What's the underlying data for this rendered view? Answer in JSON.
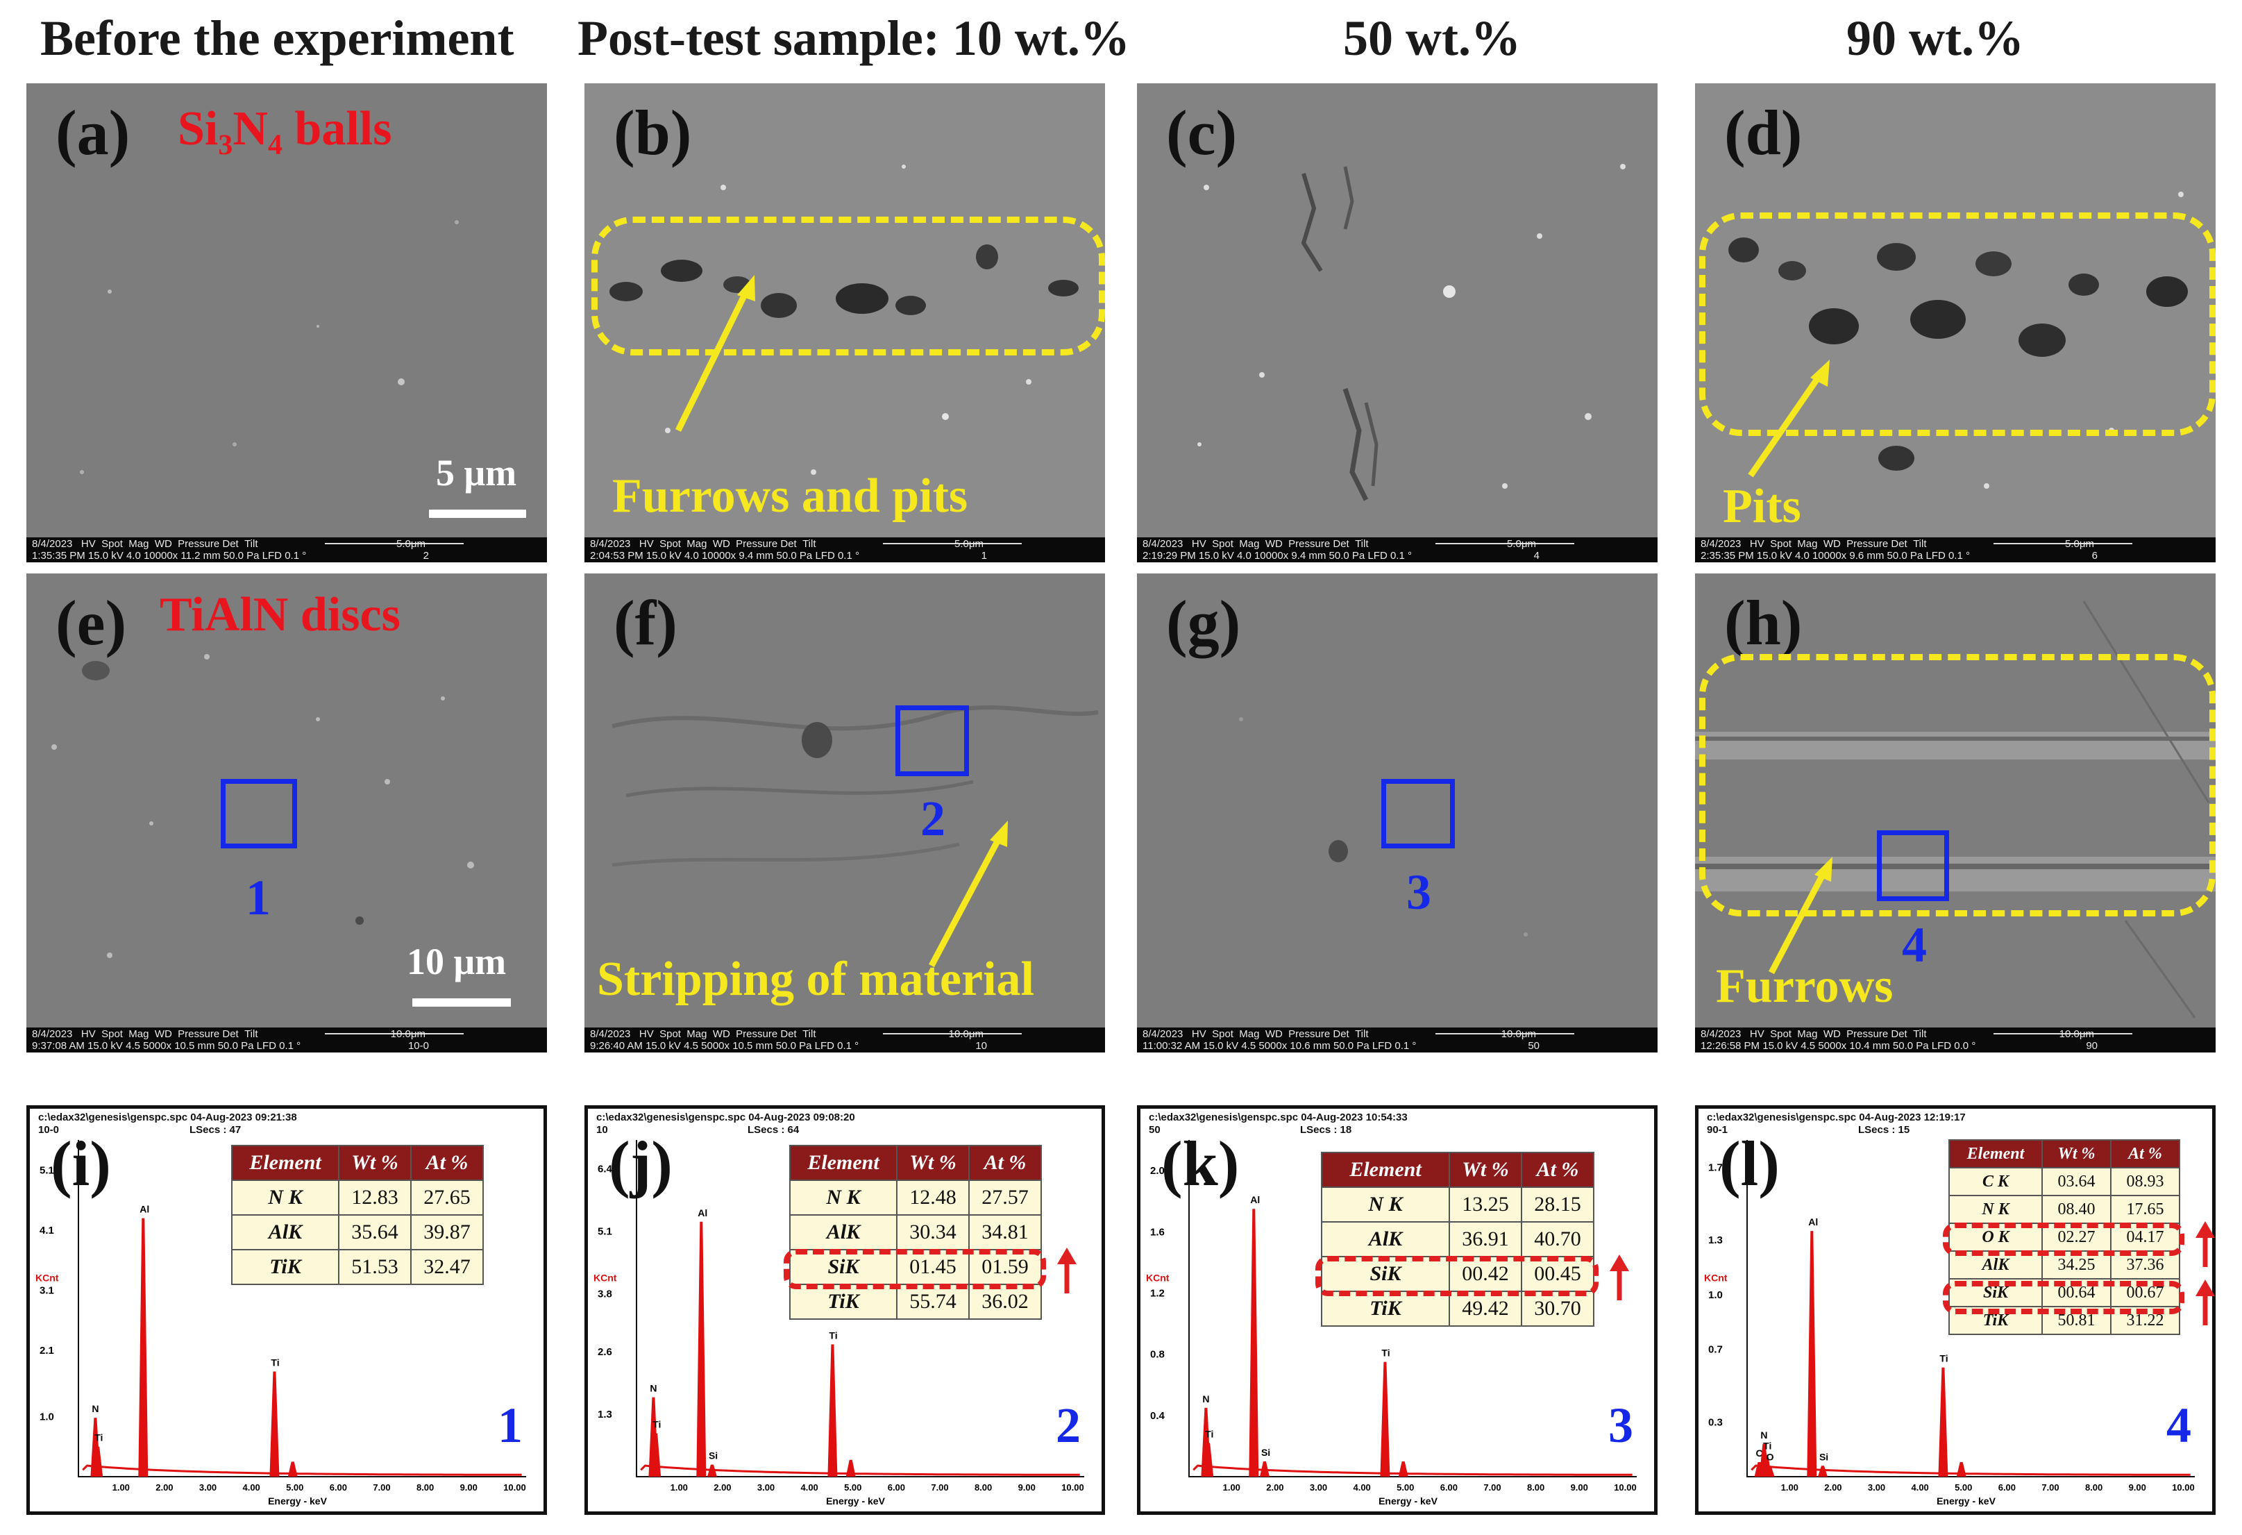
{
  "column_headers": [
    "Before the experiment",
    "Post-test sample: 10 wt.%",
    "50 wt.%",
    "90 wt.%"
  ],
  "sem_top_row": [
    {
      "label": "(a)",
      "title": "Si₃N₄ balls",
      "scale": "5 μm",
      "databar": {
        "date": "8/4/2023",
        "time": "1:35:35 PM",
        "hv": "15.0 kV",
        "spot": "4.0",
        "mag": "10000x",
        "wd": "11.2 mm",
        "pressure": "50.0 Pa",
        "det": "LFD",
        "tilt": "0.1 °",
        "bar": "5.0μm",
        "id": "2"
      }
    },
    {
      "label": "(b)",
      "note": "Furrows and pits",
      "databar": {
        "date": "8/4/2023",
        "time": "2:04:53 PM",
        "hv": "15.0 kV",
        "spot": "4.0",
        "mag": "10000x",
        "wd": "9.4 mm",
        "pressure": "50.0 Pa",
        "det": "LFD",
        "tilt": "0.1 °",
        "bar": "5.0μm",
        "id": "1"
      }
    },
    {
      "label": "(c)",
      "databar": {
        "date": "8/4/2023",
        "time": "2:19:29 PM",
        "hv": "15.0 kV",
        "spot": "4.0",
        "mag": "10000x",
        "wd": "9.4 mm",
        "pressure": "50.0 Pa",
        "det": "LFD",
        "tilt": "0.1 °",
        "bar": "5.0μm",
        "id": "4"
      }
    },
    {
      "label": "(d)",
      "note": "Pits",
      "databar": {
        "date": "8/4/2023",
        "time": "2:35:35 PM",
        "hv": "15.0 kV",
        "spot": "4.0",
        "mag": "10000x",
        "wd": "9.6 mm",
        "pressure": "50.0 Pa",
        "det": "LFD",
        "tilt": "0.1 °",
        "bar": "5.0μm",
        "id": "6"
      }
    }
  ],
  "sem_bottom_row": [
    {
      "label": "(e)",
      "title": "TiAlN discs",
      "scale": "10 μm",
      "region": "1",
      "databar": {
        "date": "8/4/2023",
        "time": "9:37:08 AM",
        "hv": "15.0 kV",
        "spot": "4.5",
        "mag": "5000x",
        "wd": "10.5 mm",
        "pressure": "50.0 Pa",
        "det": "LFD",
        "tilt": "0.1 °",
        "bar": "10.0μm",
        "id": "10-0"
      }
    },
    {
      "label": "(f)",
      "note": "Stripping of material",
      "region": "2",
      "databar": {
        "date": "8/4/2023",
        "time": "9:26:40 AM",
        "hv": "15.0 kV",
        "spot": "4.5",
        "mag": "5000x",
        "wd": "10.5 mm",
        "pressure": "50.0 Pa",
        "det": "LFD",
        "tilt": "0.1 °",
        "bar": "10.0μm",
        "id": "10"
      }
    },
    {
      "label": "(g)",
      "region": "3",
      "databar": {
        "date": "8/4/2023",
        "time": "11:00:32 AM",
        "hv": "15.0 kV",
        "spot": "4.5",
        "mag": "5000x",
        "wd": "10.6 mm",
        "pressure": "50.0 Pa",
        "det": "LFD",
        "tilt": "0.1 °",
        "bar": "10.0μm",
        "id": "50"
      }
    },
    {
      "label": "(h)",
      "note": "Furrows",
      "region": "4",
      "databar": {
        "date": "8/4/2023",
        "time": "12:26:58 PM",
        "hv": "15.0 kV",
        "spot": "4.5",
        "mag": "5000x",
        "wd": "10.4 mm",
        "pressure": "50.0 Pa",
        "det": "LFD",
        "tilt": "0.0 °",
        "bar": "10.0μm",
        "id": "90"
      }
    }
  ],
  "databar_headers": {
    "hv": "HV",
    "spot": "Spot",
    "mag": "Mag",
    "wd": "WD",
    "pressure": "Pressure",
    "det": "Det",
    "tilt": "Tilt"
  },
  "eds_common": {
    "xlabel": "Energy - keV",
    "ylabel": "KCnt",
    "x_ticks": [
      "1.00",
      "2.00",
      "3.00",
      "4.00",
      "5.00",
      "6.00",
      "7.00",
      "8.00",
      "9.00",
      "10.00"
    ],
    "col_headers": [
      "Element",
      "Wt %",
      "At %"
    ]
  },
  "chart_data": [
    {
      "type": "line",
      "panel": "(i)",
      "region": "1",
      "header": "c:\\edax32\\genesis\\genspc.spc  04-Aug-2023 09:21:38",
      "lsecs": "LSecs : 47",
      "spec_id": "10-0",
      "y_ticks": [
        "1.0",
        "2.1",
        "3.1",
        "4.1",
        "5.1"
      ],
      "ymax": 5.6,
      "peaks": [
        {
          "name": "N",
          "x": 0.39,
          "y": 0.98
        },
        {
          "name": "Ti",
          "x": 0.45,
          "y": 0.5
        },
        {
          "name": "Al",
          "x": 1.49,
          "y": 4.3
        },
        {
          "name": "Ti",
          "x": 4.51,
          "y": 1.75
        },
        {
          "name": "",
          "x": 4.93,
          "y": 0.25
        }
      ],
      "table": [
        {
          "element": "N K",
          "wt": "12.83",
          "at": "27.65"
        },
        {
          "element": "AlK",
          "wt": "35.64",
          "at": "39.87"
        },
        {
          "element": "TiK",
          "wt": "51.53",
          "at": "32.47"
        }
      ]
    },
    {
      "type": "line",
      "panel": "(j)",
      "region": "2",
      "header": "c:\\edax32\\genesis\\genspc.spc  04-Aug-2023 09:08:20",
      "lsecs": "LSecs : 64",
      "spec_id": "10",
      "y_ticks": [
        "1.3",
        "2.6",
        "3.8",
        "5.1",
        "6.4"
      ],
      "ymax": 7.0,
      "peaks": [
        {
          "name": "N",
          "x": 0.39,
          "y": 1.65
        },
        {
          "name": "Ti",
          "x": 0.45,
          "y": 0.9
        },
        {
          "name": "Al",
          "x": 1.49,
          "y": 5.3
        },
        {
          "name": "Si",
          "x": 1.74,
          "y": 0.25
        },
        {
          "name": "Ti",
          "x": 4.51,
          "y": 2.75
        },
        {
          "name": "",
          "x": 4.93,
          "y": 0.35
        }
      ],
      "table": [
        {
          "element": "N K",
          "wt": "12.48",
          "at": "27.57"
        },
        {
          "element": "AlK",
          "wt": "30.34",
          "at": "34.81"
        },
        {
          "element": "SiK",
          "wt": "01.45",
          "at": "01.59",
          "highlight": true
        },
        {
          "element": "TiK",
          "wt": "55.74",
          "at": "36.02"
        }
      ]
    },
    {
      "type": "line",
      "panel": "(k)",
      "region": "3",
      "header": "c:\\edax32\\genesis\\genspc.spc  04-Aug-2023 10:54:33",
      "lsecs": "LSecs : 18",
      "spec_id": "50",
      "y_ticks": [
        "0.4",
        "0.8",
        "1.2",
        "1.6",
        "2.0"
      ],
      "ymax": 2.2,
      "peaks": [
        {
          "name": "N",
          "x": 0.39,
          "y": 0.45
        },
        {
          "name": "Ti",
          "x": 0.45,
          "y": 0.22
        },
        {
          "name": "Al",
          "x": 1.49,
          "y": 1.75
        },
        {
          "name": "Si",
          "x": 1.74,
          "y": 0.1
        },
        {
          "name": "Ti",
          "x": 4.51,
          "y": 0.75
        },
        {
          "name": "",
          "x": 4.93,
          "y": 0.1
        }
      ],
      "table": [
        {
          "element": "N K",
          "wt": "13.25",
          "at": "28.15"
        },
        {
          "element": "AlK",
          "wt": "36.91",
          "at": "40.70"
        },
        {
          "element": "SiK",
          "wt": "00.42",
          "at": "00.45",
          "highlight": true
        },
        {
          "element": "TiK",
          "wt": "49.42",
          "at": "30.70"
        }
      ]
    },
    {
      "type": "line",
      "panel": "(l)",
      "region": "4",
      "header": "c:\\edax32\\genesis\\genspc.spc  04-Aug-2023 12:19:17",
      "lsecs": "LSecs : 15",
      "spec_id": "90-1",
      "y_ticks": [
        "0.3",
        "0.7",
        "1.0",
        "1.3",
        "1.7"
      ],
      "ymax": 1.85,
      "peaks": [
        {
          "name": "C",
          "x": 0.28,
          "y": 0.08
        },
        {
          "name": "N",
          "x": 0.39,
          "y": 0.18
        },
        {
          "name": "Ti",
          "x": 0.45,
          "y": 0.12
        },
        {
          "name": "O",
          "x": 0.52,
          "y": 0.06
        },
        {
          "name": "Al",
          "x": 1.49,
          "y": 1.35
        },
        {
          "name": "Si",
          "x": 1.74,
          "y": 0.06
        },
        {
          "name": "Ti",
          "x": 4.51,
          "y": 0.6
        },
        {
          "name": "",
          "x": 4.93,
          "y": 0.08
        }
      ],
      "table": [
        {
          "element": "C K",
          "wt": "03.64",
          "at": "08.93"
        },
        {
          "element": "N K",
          "wt": "08.40",
          "at": "17.65"
        },
        {
          "element": "O K",
          "wt": "02.27",
          "at": "04.17",
          "highlight": true
        },
        {
          "element": "AlK",
          "wt": "34.25",
          "at": "37.36"
        },
        {
          "element": "SiK",
          "wt": "00.64",
          "at": "00.67",
          "highlight": true
        },
        {
          "element": "TiK",
          "wt": "50.81",
          "at": "31.22"
        }
      ]
    }
  ],
  "colors": {
    "annotation_yellow": "#f5e81e",
    "title_red": "#e8141e",
    "region_blue": "#1528e8",
    "spectrum_red": "#e01010",
    "table_header": "#8b1a1a",
    "table_body": "#fdf8d8"
  }
}
